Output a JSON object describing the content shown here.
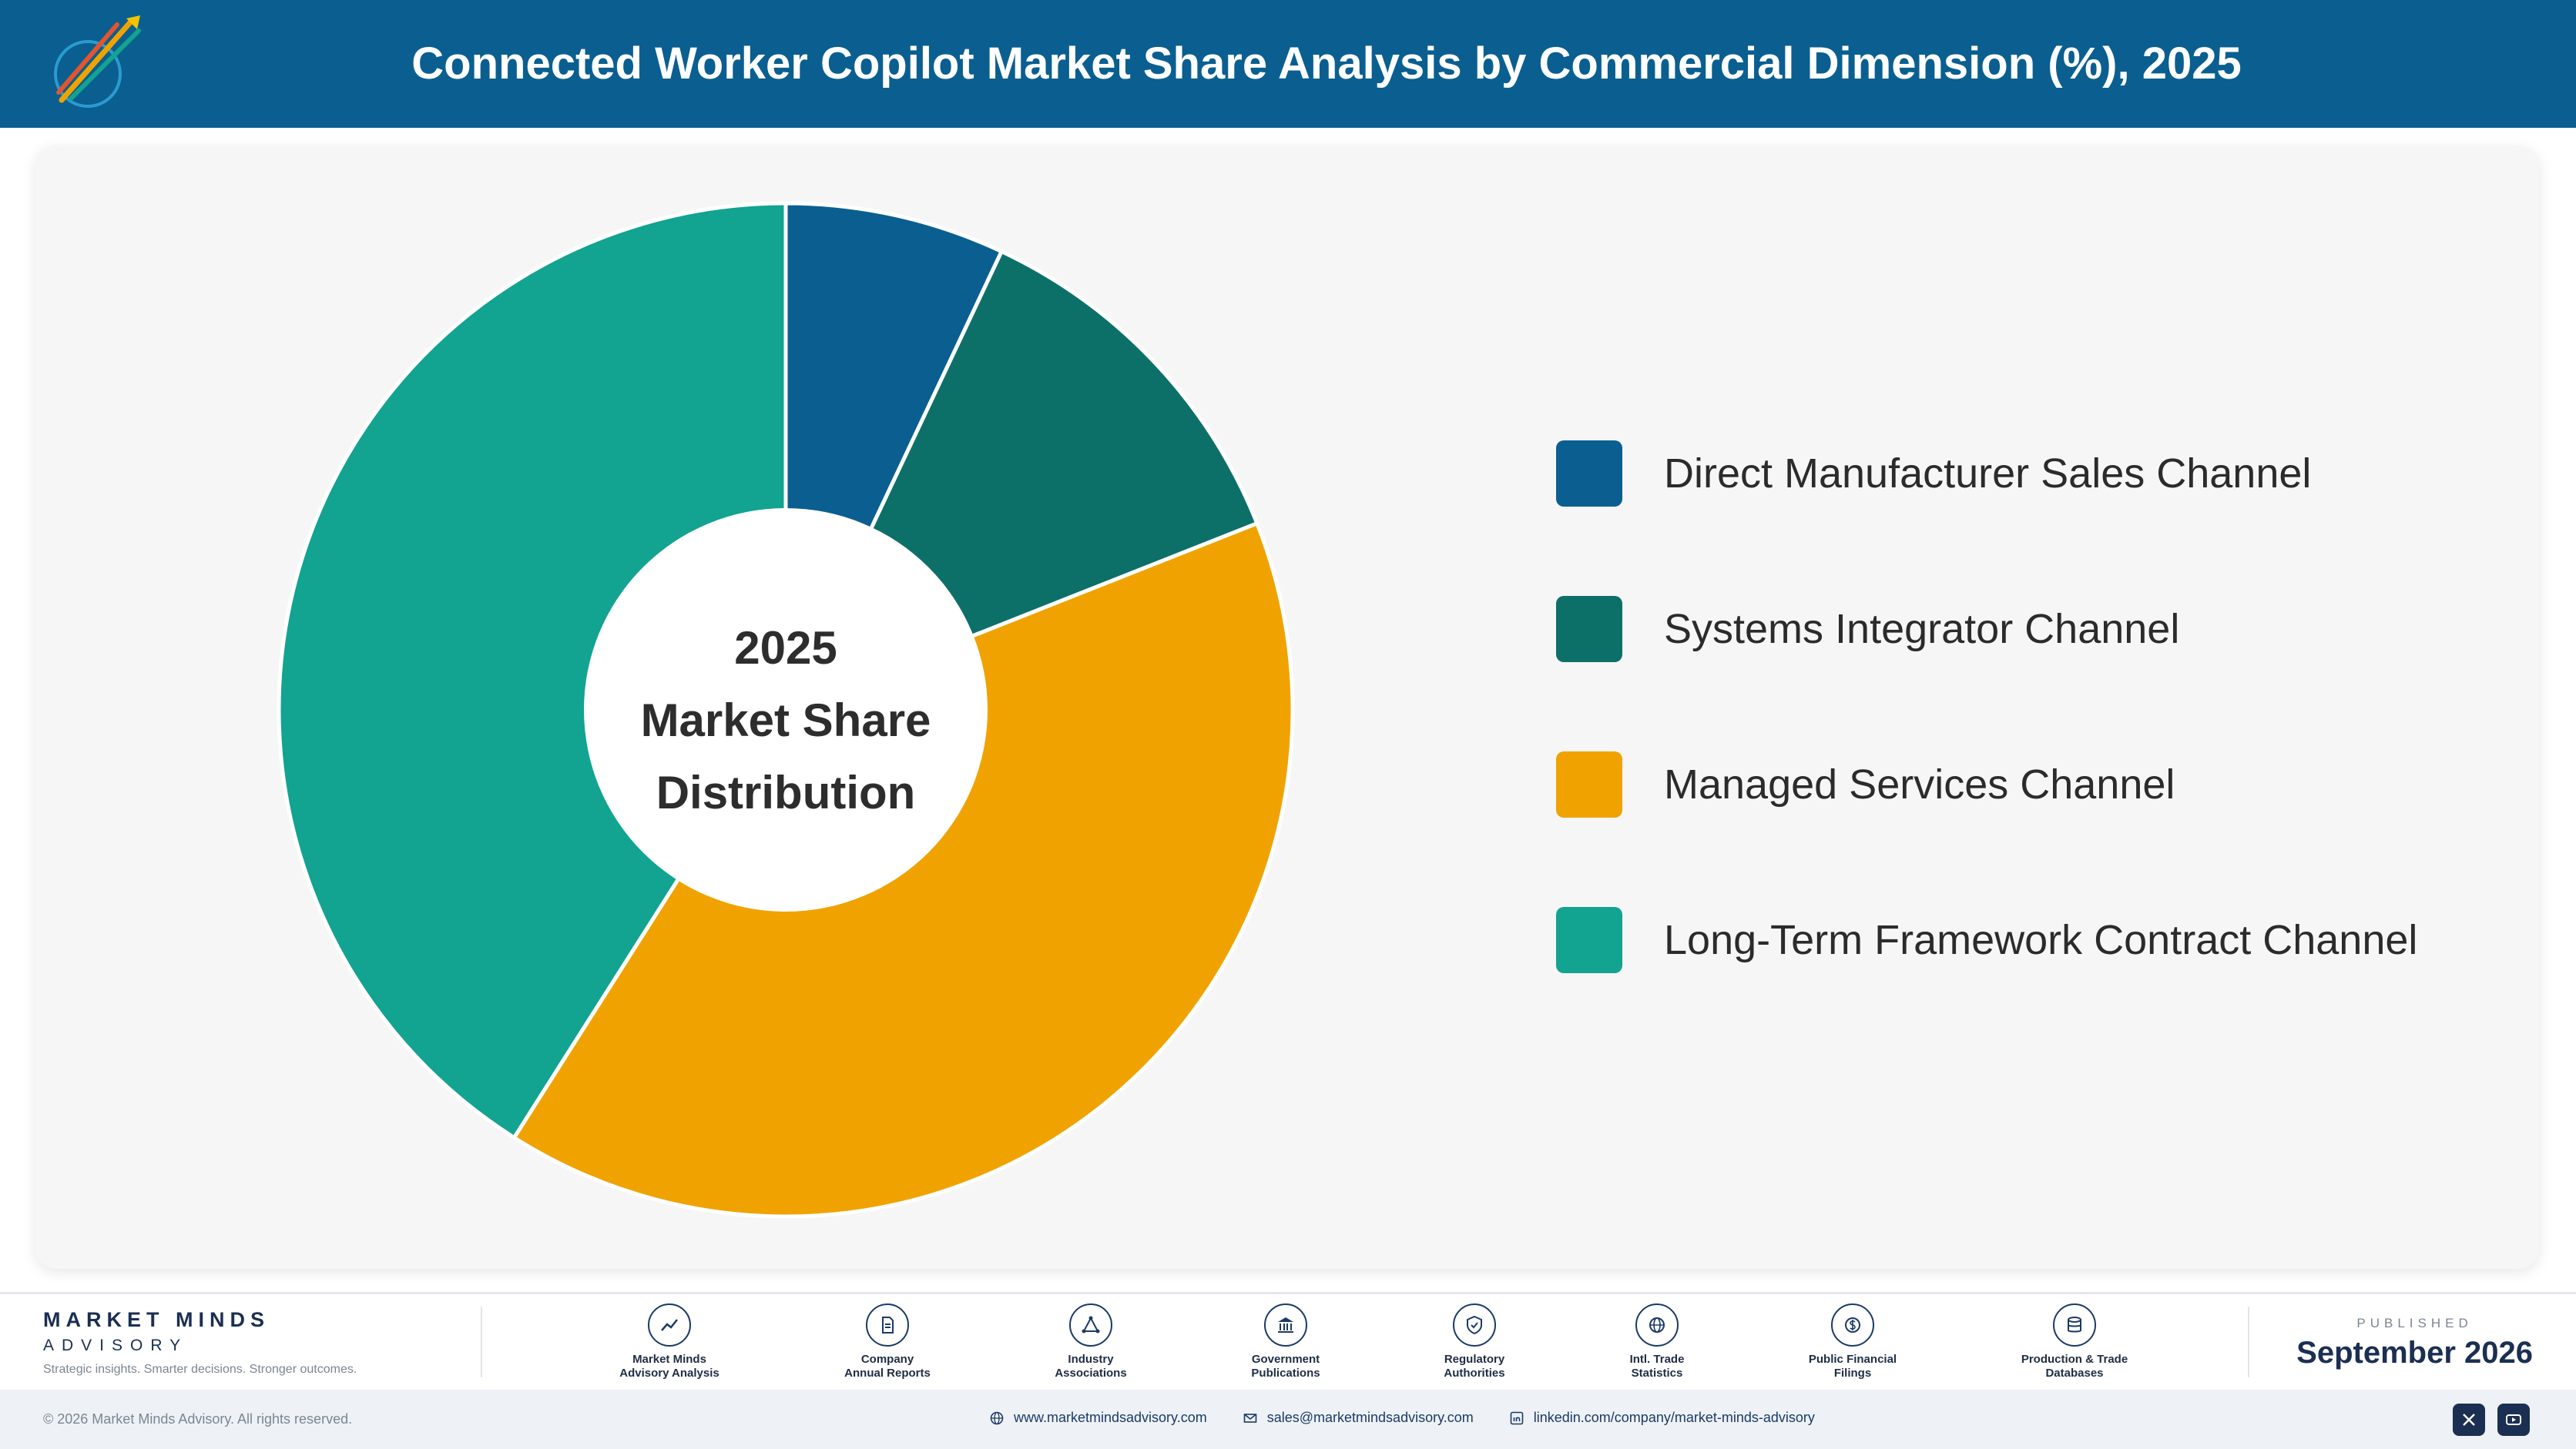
{
  "header": {
    "title": "Connected Worker Copilot Market Share Analysis by Commercial Dimension (%), 2025"
  },
  "chart_data": {
    "type": "pie",
    "title": "Connected Worker Copilot Market Share Analysis by Commercial Dimension (%), 2025",
    "center_label": [
      "2025",
      "Market Share",
      "Distribution"
    ],
    "categories": [
      "Direct Manufacturer Sales Channel",
      "Systems Integrator Channel",
      "Managed Services Channel",
      "Long-Term Framework Contract Channel"
    ],
    "values": [
      7,
      12,
      40,
      41
    ],
    "colors": [
      "#0a5f90",
      "#0d7068",
      "#f0a300",
      "#12a391"
    ],
    "legend_position": "right"
  },
  "footer": {
    "brand": {
      "name": "MARKET MINDS",
      "sub": "ADVISORY",
      "tagline": "Strategic insights. Smarter decisions. Stronger outcomes."
    },
    "sources": [
      {
        "icon": "chart-line-icon",
        "line1": "Market Minds",
        "line2": "Advisory Analysis"
      },
      {
        "icon": "document-icon",
        "line1": "Company",
        "line2": "Annual Reports"
      },
      {
        "icon": "network-icon",
        "line1": "Industry",
        "line2": "Associations"
      },
      {
        "icon": "government-building-icon",
        "line1": "Government",
        "line2": "Publications"
      },
      {
        "icon": "shield-check-icon",
        "line1": "Regulatory",
        "line2": "Authorities"
      },
      {
        "icon": "globe-icon",
        "line1": "Intl. Trade",
        "line2": "Statistics"
      },
      {
        "icon": "currency-icon",
        "line1": "Public Financial",
        "line2": "Filings"
      },
      {
        "icon": "database-icon",
        "line1": "Production & Trade",
        "line2": "Databases"
      }
    ],
    "published_label": "PUBLISHED",
    "published_date": "September 2026"
  },
  "bottom": {
    "copyright": "© 2026 Market Minds Advisory. All rights reserved.",
    "website": "www.marketmindsadvisory.com",
    "email": "sales@marketmindsadvisory.com",
    "linkedin": "linkedin.com/company/market-minds-advisory"
  }
}
